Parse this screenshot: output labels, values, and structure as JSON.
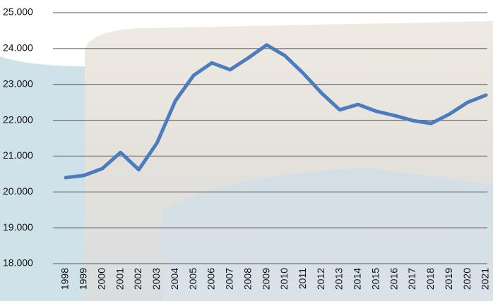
{
  "chart_data": {
    "type": "line",
    "categories": [
      "1998",
      "1999",
      "2000",
      "2001",
      "2002",
      "2003",
      "2004",
      "2005",
      "2006",
      "2007",
      "2008",
      "2009",
      "2010",
      "2011",
      "2012",
      "2013",
      "2014",
      "2015",
      "2016",
      "2017",
      "2018",
      "2019",
      "2020",
      "2021"
    ],
    "values": [
      20400,
      20460,
      20650,
      21100,
      20620,
      21370,
      22540,
      23250,
      23600,
      23410,
      23740,
      24100,
      23800,
      23310,
      22760,
      22290,
      22440,
      22250,
      22130,
      21990,
      21910,
      22170,
      22500,
      22700
    ],
    "color": "#4a7cbf",
    "ylim": [
      18000,
      25000
    ],
    "yticks": [
      {
        "value": 18000,
        "label": "18.000"
      },
      {
        "value": 19000,
        "label": "19.000"
      },
      {
        "value": 20000,
        "label": "20.000"
      },
      {
        "value": 21000,
        "label": "21.000"
      },
      {
        "value": 22000,
        "label": "22.000"
      },
      {
        "value": 23000,
        "label": "23.000"
      },
      {
        "value": 24000,
        "label": "24.000"
      },
      {
        "value": 25000,
        "label": "25.000"
      }
    ],
    "grid": true
  }
}
